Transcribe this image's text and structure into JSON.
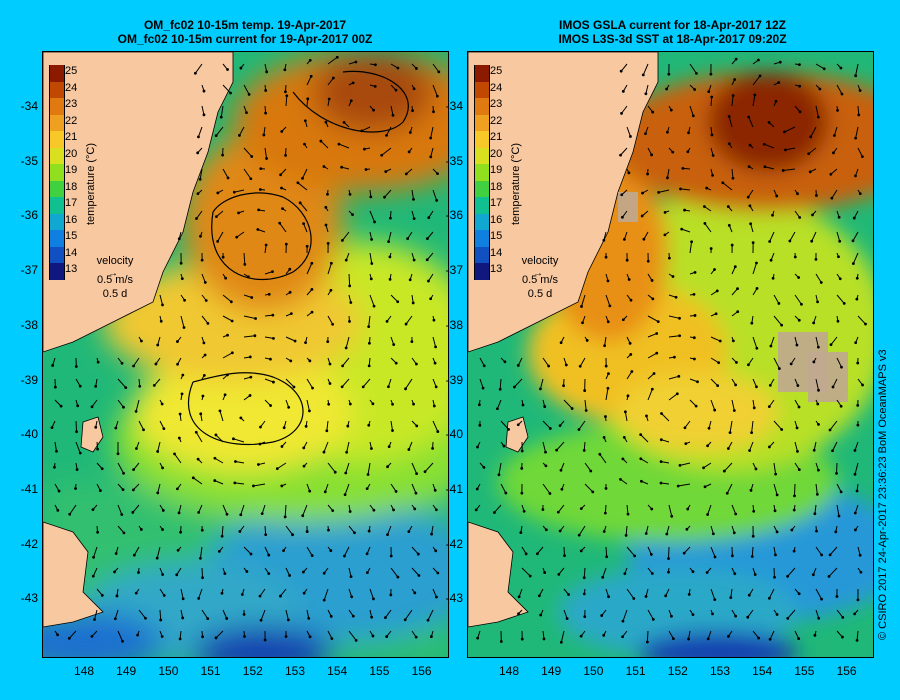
{
  "titles": {
    "left": [
      "OM_fc02 10-15m temp. 19-Apr-2017",
      "OM_fc02 10-15m current for 19-Apr-2017 00Z"
    ],
    "right": [
      "IMOS GSLA current for 18-Apr-2017 12Z",
      "IMOS L3S-3d SST at 18-Apr-2017 09:20Z"
    ]
  },
  "colorbar": {
    "ticks": [
      "25",
      "24",
      "23",
      "22",
      "21",
      "20",
      "19",
      "18",
      "17",
      "16",
      "15",
      "14",
      "13"
    ],
    "label": "temperature (°C)",
    "colors": [
      "#8b1a00",
      "#c04800",
      "#e07a10",
      "#f0a020",
      "#f8c828",
      "#d8e020",
      "#90e020",
      "#40d040",
      "#10c090",
      "#10a8d0",
      "#1080e0",
      "#1050c0",
      "#101880"
    ]
  },
  "velocity_key": {
    "title": "velocity",
    "speed": "0.5 m/s",
    "days": "0.5 d"
  },
  "y_ticks": [
    "-34",
    "-35",
    "-36",
    "-37",
    "-38",
    "-39",
    "-40",
    "-41",
    "-42",
    "-43"
  ],
  "x_ticks": [
    "148",
    "149",
    "150",
    "151",
    "152",
    "153",
    "154",
    "155",
    "156"
  ],
  "credit": "© CSIRO 2017   24-Apr-2017 23:36:23 BoM OceanMAPS v3",
  "colors": {
    "land": "#f8c8a0",
    "background": "#00ccff",
    "warm": "#d8700c",
    "hot": "#a84000",
    "mid": "#e8f030",
    "cool": "#20b878",
    "cold": "#2090d0"
  }
}
